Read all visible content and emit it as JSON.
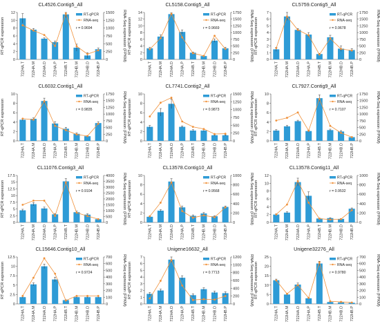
{
  "legend": {
    "bar_label": "RT-qPCR",
    "line_label": "RNA-seq"
  },
  "colors": {
    "bar": "#2e9bd6",
    "line": "#f0913a",
    "axis": "#444444",
    "error": "#333333"
  },
  "chart_data": [
    {
      "type": "bar+line",
      "title": "CL4526.Contig5_All",
      "categories": [
        "722HA.T",
        "722HA.M",
        "722HA.D",
        "722HA.P",
        "722HB.T",
        "722HB.M",
        "722HB.D",
        "722HB.P"
      ],
      "ylabel": "RT-qPCR expression",
      "y2label": "RNA-Seq expression (FPKM)",
      "ylim": [
        0,
        12
      ],
      "yticks": [
        0,
        2,
        4,
        6,
        8,
        10,
        12
      ],
      "y2lim": [
        0,
        1500
      ],
      "y2ticks": [
        0,
        250,
        500,
        750,
        1000,
        1250,
        1500
      ],
      "bars": [
        10.5,
        7.6,
        5.3,
        4.4,
        11.5,
        3.0,
        1.0,
        2.6
      ],
      "errors": [
        1.2,
        0.3,
        0.2,
        0.3,
        0.8,
        0.9,
        0.7,
        0.3
      ],
      "line": [
        1090,
        920,
        780,
        430,
        1470,
        420,
        170,
        290
      ],
      "r_text": "r = 0.9694",
      "r_pos": "right"
    },
    {
      "type": "bar+line",
      "title": "CL5158.Contig5_All",
      "categories": [
        "722HA.T",
        "722HA.M",
        "722HA.D",
        "722HA.P",
        "722HB.T",
        "722HB.M",
        "722HB.D",
        "722HB.P"
      ],
      "ylabel": "RT-qPCR expression",
      "y2label": "RNA-Seq expression (FPKM)",
      "ylim": [
        0,
        14
      ],
      "yticks": [
        0,
        2,
        4,
        6,
        8,
        10,
        12,
        14
      ],
      "y2lim": [
        0,
        1750
      ],
      "y2ticks": [
        0,
        250,
        500,
        750,
        1000,
        1250,
        1500,
        1750
      ],
      "bars": [
        3.3,
        6.8,
        13.5,
        8.2,
        2.0,
        1.0,
        5.6,
        3.3
      ],
      "errors": [
        0.3,
        0.5,
        0.4,
        0.6,
        0.2,
        0.1,
        0.5,
        0.3
      ],
      "line": [
        380,
        790,
        1700,
        820,
        230,
        130,
        880,
        390
      ],
      "r_text": "r = 0.9669",
      "r_pos": "right"
    },
    {
      "type": "bar+line",
      "title": "CL5759.Contig5_All",
      "categories": [
        "722HA.T",
        "722HA.M",
        "722HA.D",
        "722HA.P",
        "722HB.T",
        "722HB.M",
        "722HB.D",
        "722HB.P"
      ],
      "ylabel": "RT-qPCR expression",
      "y2label": "RNA-Seq expression (FPKM)",
      "ylim": [
        0,
        7
      ],
      "yticks": [
        0,
        1,
        2,
        3,
        4,
        5,
        6,
        7
      ],
      "y2lim": [
        0,
        1750
      ],
      "y2ticks": [
        0,
        250,
        500,
        750,
        1000,
        1250,
        1500,
        1750
      ],
      "bars": [
        1.5,
        6.4,
        4.4,
        3.7,
        0.8,
        3.3,
        1.6,
        1.4
      ],
      "errors": [
        0.3,
        0.6,
        0.2,
        0.3,
        0.1,
        0.3,
        0.4,
        0.2
      ],
      "line": [
        420,
        1600,
        1100,
        900,
        180,
        780,
        390,
        330
      ],
      "r_text": "r = 0.9678",
      "r_pos": "right"
    },
    {
      "type": "bar+line",
      "title": "CL6032.Contig1_All",
      "categories": [
        "722HA.T",
        "722HA.M",
        "722HA.D",
        "722HA.P",
        "722HB.T",
        "722HB.M",
        "722HB.D",
        "722HB.P"
      ],
      "ylabel": "RT-qPCR expression",
      "y2label": "RNA-Seq expression (FPKM)",
      "ylim": [
        0,
        10
      ],
      "yticks": [
        0,
        2,
        4,
        6,
        8,
        10
      ],
      "y2lim": [
        0,
        1750
      ],
      "y2ticks": [
        0,
        250,
        500,
        750,
        1000,
        1250,
        1500,
        1750
      ],
      "bars": [
        4.5,
        4.7,
        8.5,
        3.7,
        2.6,
        1.5,
        1.0,
        3.8
      ],
      "errors": [
        0.2,
        0.2,
        0.6,
        0.4,
        0.3,
        0.2,
        0.1,
        0.3
      ],
      "line": [
        830,
        790,
        1480,
        560,
        400,
        240,
        180,
        640
      ],
      "r_text": "r = 0.9835",
      "r_pos": "right"
    },
    {
      "type": "bar+line",
      "title": "CL7741.Contig2_All",
      "categories": [
        "722HA.T",
        "722HA.M",
        "722HA.D",
        "722HA.P",
        "722HB.T",
        "722HB.M",
        "722HB.D",
        "722HB.P"
      ],
      "ylabel": "RT-qPCR expression",
      "y2label": "RNA-Seq expression (FPKM)",
      "ylim": [
        0,
        10
      ],
      "yticks": [
        0,
        2,
        4,
        6,
        8,
        10
      ],
      "y2lim": [
        0,
        1500
      ],
      "y2ticks": [
        0,
        250,
        500,
        750,
        1000,
        1250,
        1500
      ],
      "bars": [
        3.0,
        6.1,
        7.9,
        3.0,
        2.2,
        2.2,
        1.2,
        1.2
      ],
      "errors": [
        0.3,
        0.8,
        1.0,
        0.2,
        0.2,
        0.2,
        0.1,
        0.1
      ],
      "line": [
        780,
        1220,
        1380,
        620,
        450,
        380,
        220,
        230
      ],
      "r_text": "r = 0.9873",
      "r_pos": "right"
    },
    {
      "type": "bar+line",
      "title": "CL7927.Contig9_All",
      "categories": [
        "722HA.T",
        "722HA.M",
        "722HA.D",
        "722HA.P",
        "722HB.T",
        "722HB.M",
        "722HB.D",
        "722HB.P"
      ],
      "ylabel": "RT-qPCR expression",
      "y2label": "RNA-Seq expression (FPKM)",
      "ylim": [
        0,
        10
      ],
      "yticks": [
        0,
        2,
        4,
        6,
        8,
        10
      ],
      "y2lim": [
        0,
        1750
      ],
      "y2ticks": [
        0,
        250,
        500,
        750,
        1000,
        1250,
        1500,
        1750
      ],
      "bars": [
        2.2,
        3.1,
        4.2,
        2.1,
        9.1,
        2.3,
        2.0,
        0.8
      ],
      "errors": [
        0.2,
        0.2,
        0.2,
        0.2,
        0.7,
        0.2,
        0.2,
        0.1
      ],
      "line": [
        760,
        860,
        1060,
        380,
        1560,
        560,
        300,
        140
      ],
      "r_text": "r = 0.7107",
      "r_pos": "right"
    },
    {
      "type": "bar+line",
      "title": "CL11076.Contig3_All",
      "categories": [
        "722HA.T",
        "722HA.M",
        "722HA.D",
        "722HA.P",
        "722HB.T",
        "722HB.M",
        "722HB.D",
        "722HB.P"
      ],
      "ylabel": "RT-qPCR expression",
      "y2label": "RNA-Seq expression (FPKM)",
      "ylim": [
        0,
        17.5
      ],
      "yticks": [
        0,
        2.5,
        5,
        7.5,
        10,
        12.5,
        15,
        17.5
      ],
      "y2lim": [
        0,
        4000
      ],
      "y2ticks": [
        0,
        500,
        1000,
        1500,
        2000,
        2500,
        3000,
        3500,
        4000
      ],
      "bars": [
        4.5,
        6.8,
        5.2,
        3.0,
        15.3,
        3.8,
        2.9,
        1.2
      ],
      "errors": [
        0.4,
        0.6,
        0.5,
        0.3,
        1.0,
        0.4,
        0.3,
        0.1
      ],
      "line": [
        1500,
        1850,
        1850,
        560,
        3400,
        830,
        540,
        280
      ],
      "r_text": "r = 0.9104",
      "r_pos": "right"
    },
    {
      "type": "bar+line",
      "title": "CL13578.Contig10_All",
      "categories": [
        "722HA.T",
        "722HA.M",
        "722HA.D",
        "722HA.P",
        "722HB.T",
        "722HB.M",
        "722HB.D",
        "722HB.P"
      ],
      "ylabel": "RT-qPCR expression",
      "y2label": "RNA-Seq expression (FPKM)",
      "ylim": [
        0,
        10
      ],
      "yticks": [
        0,
        2,
        4,
        6,
        8,
        10
      ],
      "y2lim": [
        0,
        1000
      ],
      "y2ticks": [
        0,
        200,
        400,
        600,
        800,
        1000
      ],
      "bars": [
        1.2,
        2.5,
        8.7,
        3.2,
        1.4,
        1.9,
        1.3,
        3.3
      ],
      "errors": [
        0.1,
        0.2,
        0.6,
        0.3,
        0.2,
        0.2,
        0.1,
        0.2
      ],
      "line": [
        130,
        420,
        850,
        240,
        100,
        150,
        110,
        320
      ],
      "r_text": "r = 0.9568",
      "r_pos": "right"
    },
    {
      "type": "bar+line",
      "title": "CL13578.Contig11_All",
      "categories": [
        "722HA.T",
        "722HA.M",
        "722HA.D",
        "722HA.P",
        "722HB.T",
        "722HB.M",
        "722HB.D",
        "722HB.P"
      ],
      "ylabel": "RT-qPCR expression",
      "y2label": "RNA-Seq expression (FPKM)",
      "ylim": [
        0,
        12
      ],
      "yticks": [
        0,
        2,
        4,
        6,
        8,
        10,
        12
      ],
      "y2lim": [
        0,
        1000
      ],
      "y2ticks": [
        0,
        200,
        400,
        600,
        800,
        1000
      ],
      "bars": [
        2.0,
        2.5,
        10.3,
        6.8,
        1.0,
        1.1,
        0.9,
        3.5
      ],
      "errors": [
        0.2,
        0.2,
        1.0,
        1.0,
        0.1,
        0.1,
        0.1,
        0.2
      ],
      "line": [
        170,
        380,
        880,
        420,
        80,
        60,
        70,
        260
      ],
      "r_text": "r = 0.9532",
      "r_pos": "right"
    },
    {
      "type": "bar+line",
      "title": "CL15646.Contig10_All",
      "categories": [
        "722HA.T",
        "722HA.M",
        "722HA.D",
        "722HA.P",
        "722HB.T",
        "722HB.M",
        "722HB.D",
        "722HB.P"
      ],
      "ylabel": "RT-qPCR expression",
      "y2label": "RNA-Seq expression (FPKM)",
      "ylim": [
        0,
        12.5
      ],
      "yticks": [
        0,
        2.5,
        5,
        7.5,
        10,
        12.5
      ],
      "y2lim": [
        0,
        700
      ],
      "y2ticks": [
        0,
        100,
        200,
        300,
        400,
        500,
        600,
        700
      ],
      "bars": [
        1.8,
        5.2,
        10.0,
        6.5,
        1.0,
        1.8,
        1.8,
        1.8
      ],
      "errors": [
        0.2,
        0.4,
        0.6,
        0.6,
        0.1,
        0.2,
        0.2,
        0.2
      ],
      "line": [
        120,
        390,
        680,
        450,
        50,
        120,
        120,
        120
      ],
      "r_text": "r = 0.9724",
      "r_pos": "right"
    },
    {
      "type": "bar+line",
      "title": "Unigene16632_All",
      "categories": [
        "722HA.T",
        "722HA.M",
        "722HA.D",
        "722HA.P",
        "722HB.T",
        "722HB.M",
        "722HB.D",
        "722HB.P"
      ],
      "ylabel": "RT-qPCR expression",
      "y2label": "RNA-Seq expression (FPKM)",
      "ylim": [
        0,
        7
      ],
      "yticks": [
        0,
        1,
        2,
        3,
        4,
        5,
        6,
        7
      ],
      "y2lim": [
        0,
        1200
      ],
      "y2ticks": [
        0,
        200,
        400,
        600,
        800,
        1000,
        1200
      ],
      "bars": [
        1.5,
        2.0,
        6.6,
        3.9,
        1.3,
        2.2,
        1.7,
        1.6
      ],
      "errors": [
        0.2,
        0.2,
        0.4,
        0.3,
        0.2,
        0.2,
        0.2,
        0.2
      ],
      "line": [
        140,
        590,
        1120,
        470,
        100,
        120,
        110,
        200
      ],
      "r_text": "r = 0.7713",
      "r_pos": "right"
    },
    {
      "type": "bar+line",
      "title": "Unigene32276_All",
      "categories": [
        "722HA.T",
        "722HA.M",
        "722HA.D",
        "722HA.P",
        "722HB.T",
        "722HB.M",
        "722HB.D",
        "722HB.P"
      ],
      "ylabel": "RT-qPCR expression",
      "y2label": "RNA-Seq expression (FPKM)",
      "ylim": [
        0,
        25
      ],
      "yticks": [
        0,
        5,
        10,
        15,
        20,
        25
      ],
      "y2lim": [
        0,
        700
      ],
      "y2ticks": [
        0,
        100,
        200,
        300,
        400,
        500,
        600,
        700
      ],
      "bars": [
        12.6,
        5.0,
        10.3,
        3.0,
        21.5,
        1.0,
        0.8,
        0.6
      ],
      "errors": [
        0.6,
        0.3,
        0.8,
        0.3,
        1.2,
        0.1,
        0.1,
        0.1
      ],
      "line": [
        350,
        150,
        280,
        90,
        620,
        40,
        30,
        20
      ],
      "r_text": "r = 0.9780",
      "r_pos": "right"
    }
  ]
}
